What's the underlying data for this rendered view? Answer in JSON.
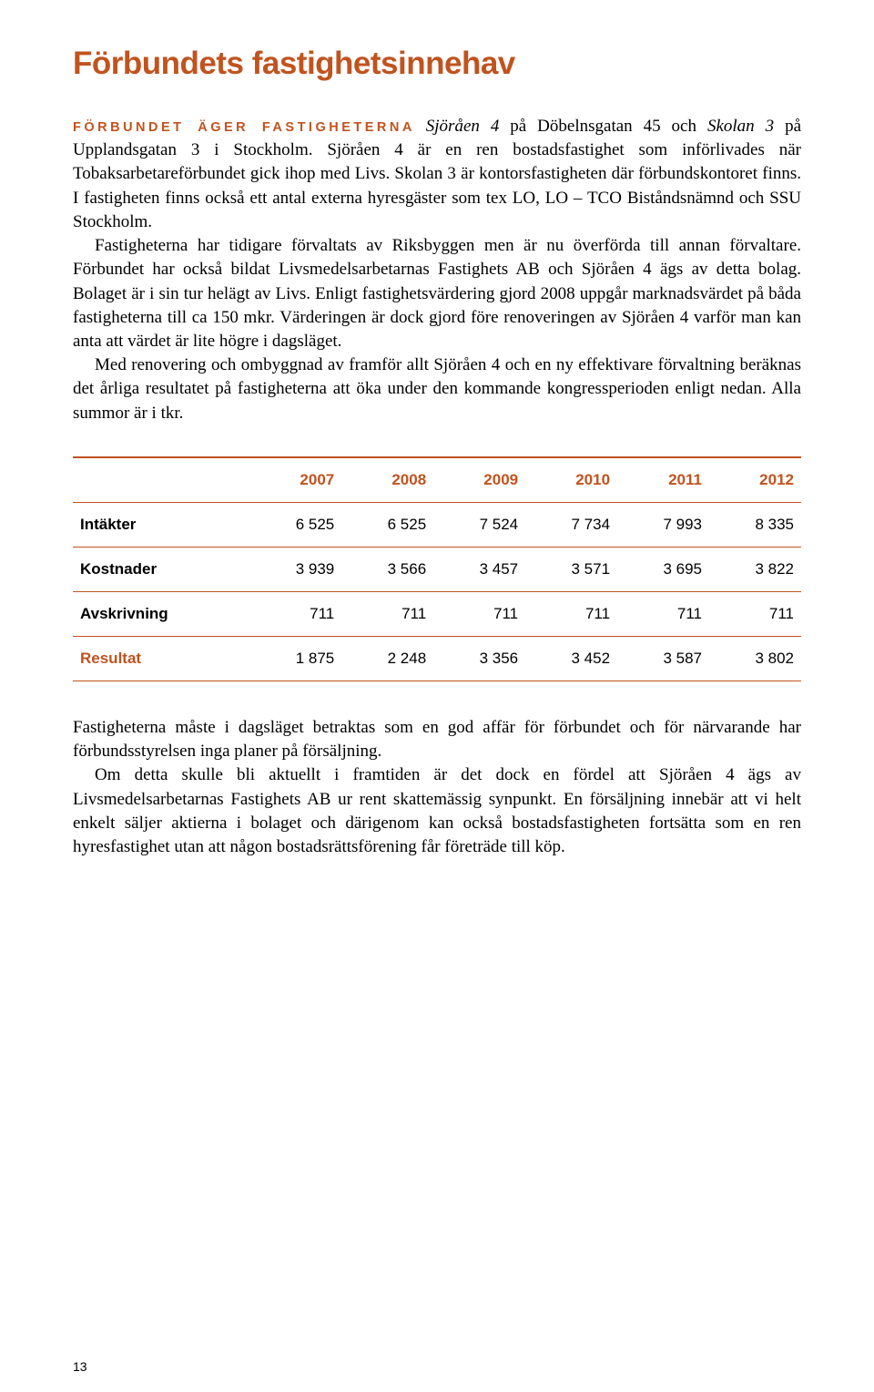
{
  "heading": "Förbundets fastighetsinnehav",
  "lead_label": "Förbundet äger fastigheterna",
  "p1_intro_italic": " Sjöråen 4 ",
  "p1_part1": "på Döbelnsgatan 45 och ",
  "p1_italic2": "Skolan 3",
  "p1_part2": " på Upplandsgatan 3 i Stockholm. Sjöråen 4 är en ren bostadsfastighet som införlivades när Tobaksarbetareförbundet gick ihop med Livs. Skolan 3 är kontorsfastigheten där förbundskontoret finns. I fastigheten finns också ett antal externa hyresgäster som tex LO, LO – TCO Biståndsnämnd och SSU Stockholm.",
  "p2": "Fastigheterna har tidigare förvaltats av Riksbyggen men är nu överförda till annan förvaltare. Förbundet har också bildat Livsmedelsarbetarnas Fastighets AB och Sjöråen 4 ägs av detta bolag. Bolaget är i sin tur helägt av Livs. Enligt fastighetsvärdering gjord 2008 uppgår marknadsvärdet på båda fastigheterna till ca 150 mkr. Värderingen är dock gjord före renoveringen av Sjöråen 4 varför man kan anta att värdet är lite högre i dagsläget.",
  "p3": "Med renovering och ombyggnad av framför allt Sjöråen 4 och en ny effektivare förvaltning beräknas det årliga resultatet på fastigheterna att öka under den kommande kongressperioden enligt nedan. Alla summor är i tkr.",
  "table": {
    "columns": [
      "",
      "2007",
      "2008",
      "2009",
      "2010",
      "2011",
      "2012"
    ],
    "rows": [
      [
        "Intäkter",
        "6 525",
        "6 525",
        "7 524",
        "7 734",
        "7 993",
        "8 335"
      ],
      [
        "Kostnader",
        "3 939",
        "3 566",
        "3 457",
        "3 571",
        "3 695",
        "3 822"
      ],
      [
        "Avskrivning",
        "711",
        "711",
        "711",
        "711",
        "711",
        "711"
      ],
      [
        "Resultat",
        "1 875",
        "2 248",
        "3 356",
        "3 452",
        "3 587",
        "3 802"
      ]
    ],
    "result_row_index": 3,
    "border_color": "#c1531f",
    "header_color": "#c1531f"
  },
  "p4": "Fastigheterna måste i dagsläget betraktas som en god affär för förbundet och för närvarande har förbundsstyrelsen inga planer på försäljning.",
  "p5": "Om detta skulle bli aktuellt i framtiden är det dock en fördel att Sjöråen 4 ägs av Livsmedelsarbetarnas Fastighets AB ur rent skattemässig synpunkt. En försäljning innebär att vi helt enkelt säljer aktierna i bolaget och därigenom kan också bostadsfastigheten fortsätta som en ren hyresfastighet utan att någon bostadsrättsförening får företräde till köp.",
  "page_number": "13",
  "colors": {
    "accent": "#c1531f",
    "text": "#000000",
    "background": "#ffffff"
  }
}
